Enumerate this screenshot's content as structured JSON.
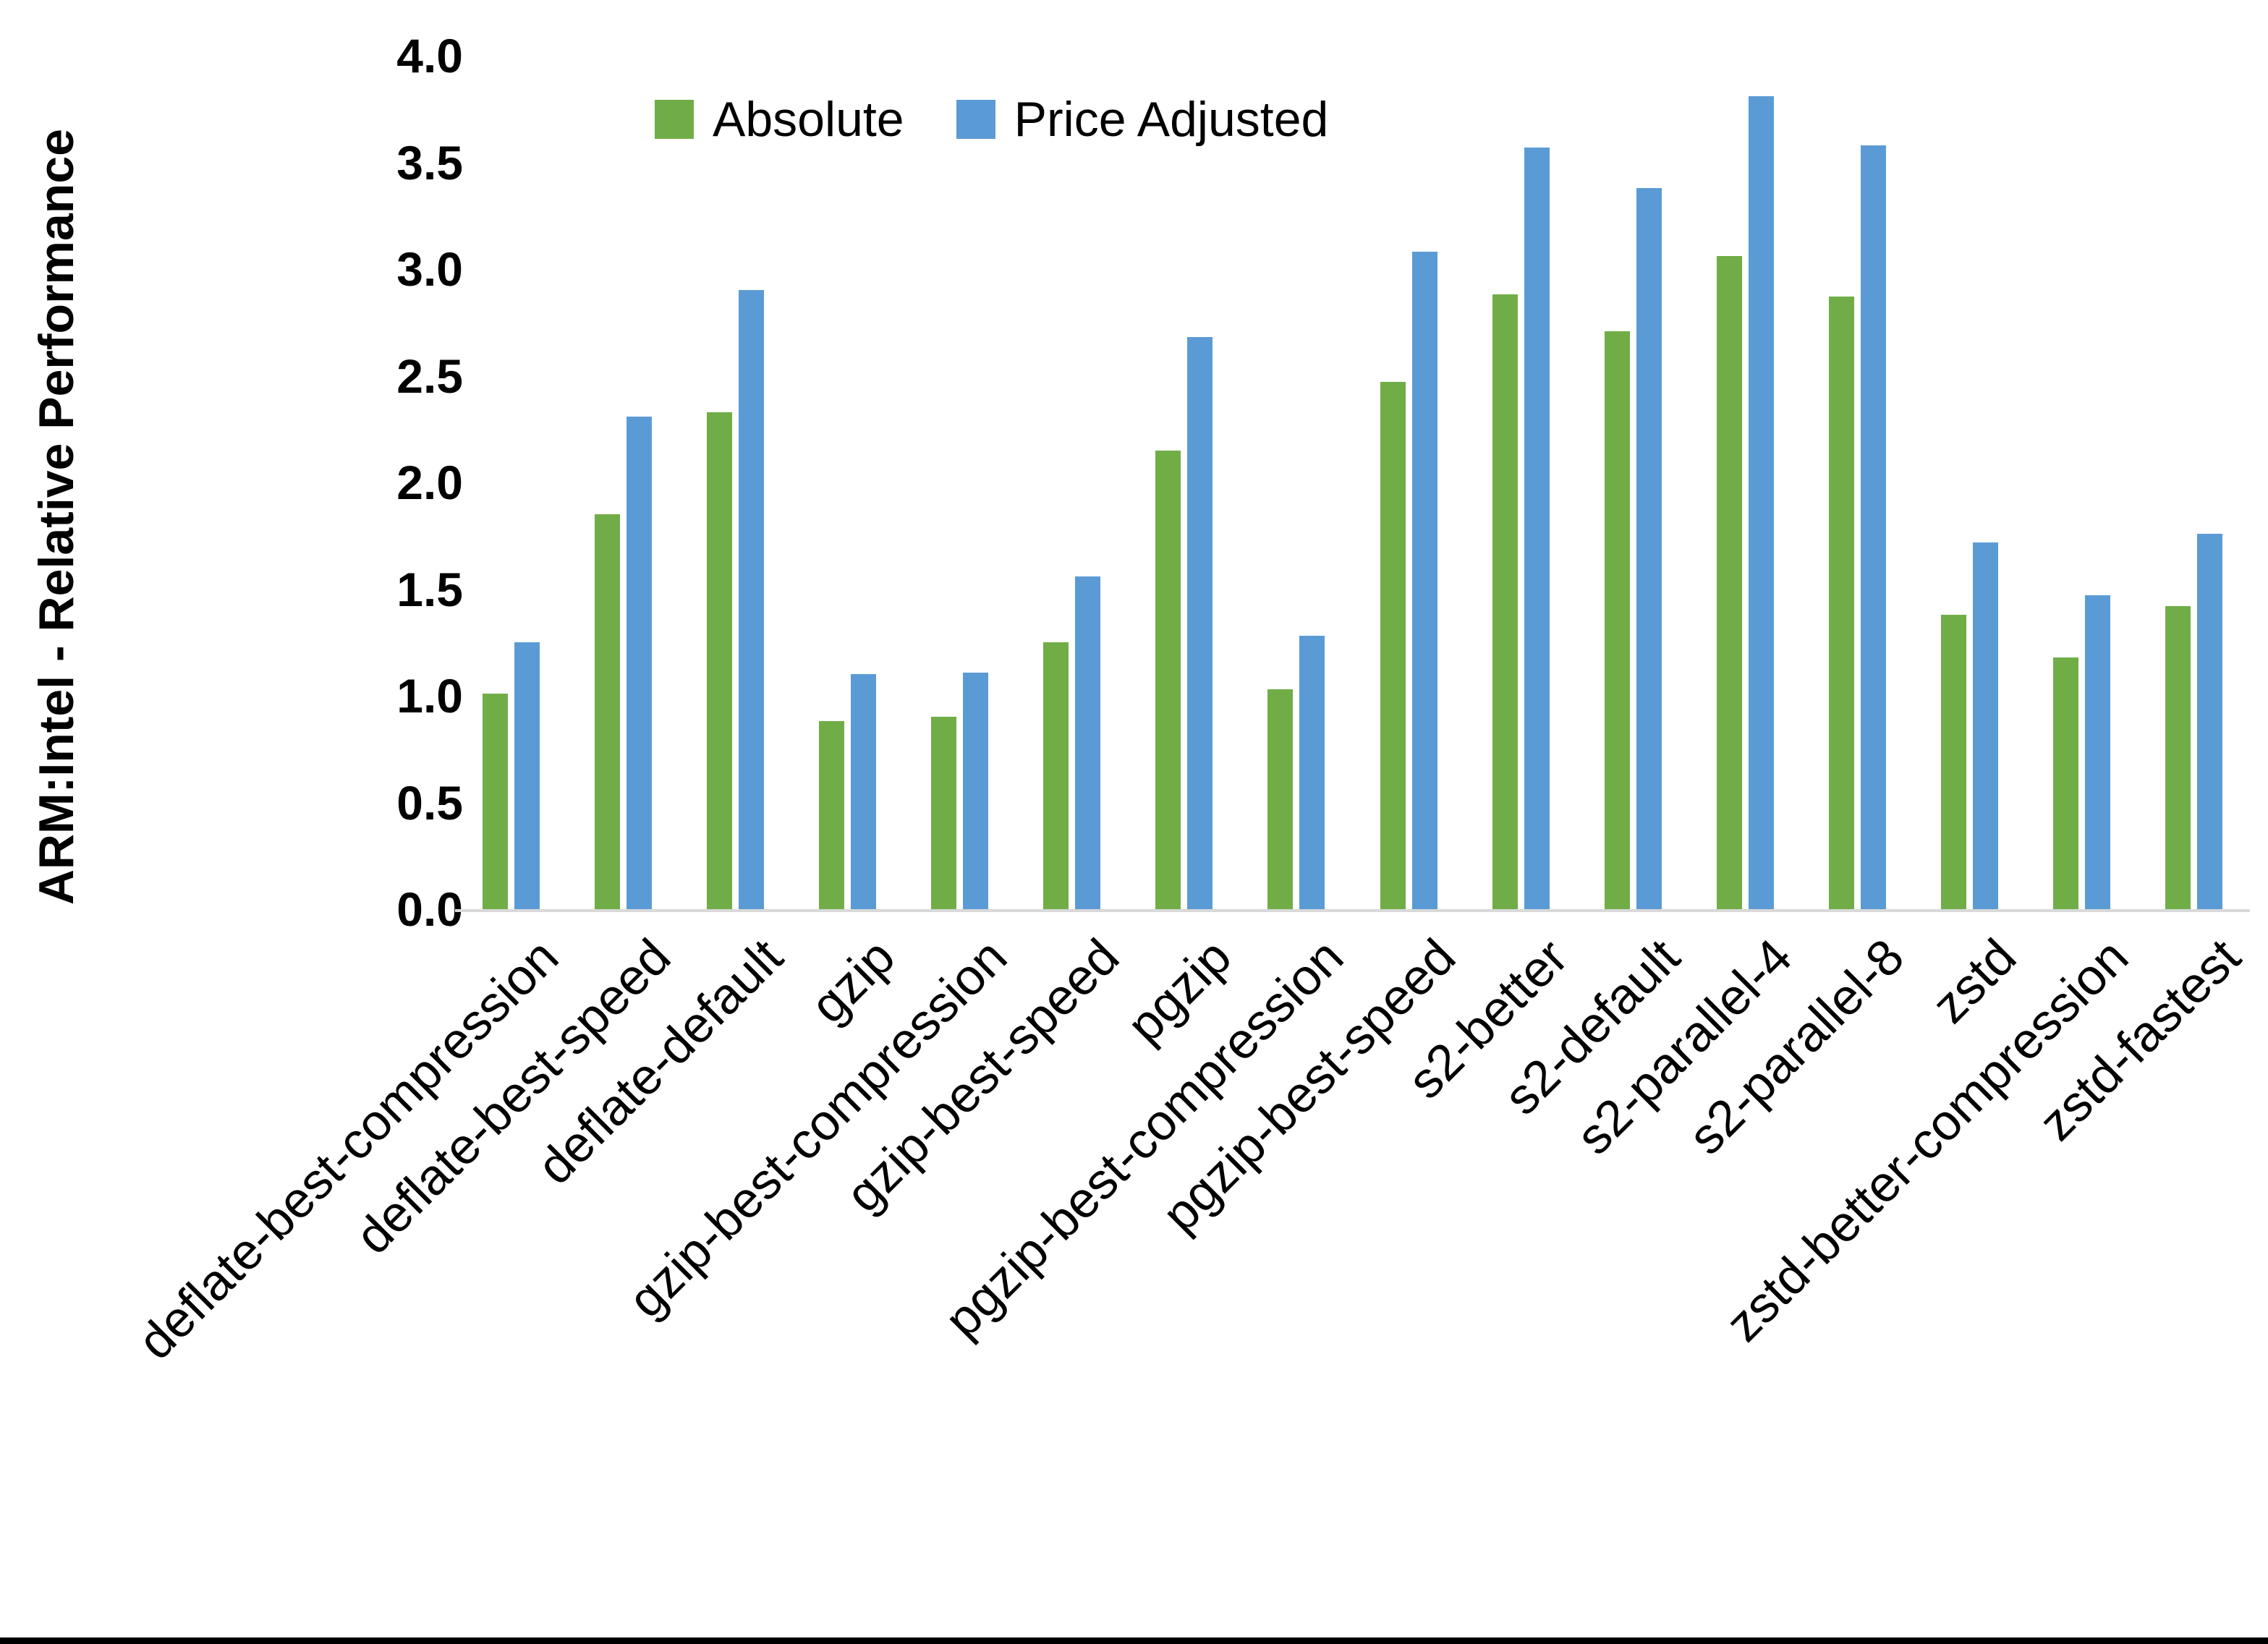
{
  "chart_data": {
    "type": "bar",
    "title": "",
    "ylabel": "ARM:Intel - Relative Performance",
    "xlabel": "",
    "categories": [
      "deflate-best-compression",
      "deflate-best-speed",
      "deflate-default",
      "gzip",
      "gzip-best-compression",
      "gzip-best-speed",
      "pgzip",
      "pgzip-best-compression",
      "pgzip-best-speed",
      "s2-better",
      "s2-default",
      "s2-parallel-4",
      "s2-parallel-8",
      "zstd",
      "zstd-better-compression",
      "zstd-fastest"
    ],
    "series": [
      {
        "name": "Absolute",
        "color": "#70AD47",
        "values": [
          1.01,
          1.85,
          2.33,
          0.88,
          0.9,
          1.25,
          2.15,
          1.03,
          2.47,
          2.88,
          2.71,
          3.06,
          2.87,
          1.38,
          1.18,
          1.42
        ]
      },
      {
        "name": "Price Adjusted",
        "color": "#5B9BD5",
        "values": [
          1.25,
          2.31,
          2.9,
          1.1,
          1.11,
          1.56,
          2.68,
          1.28,
          3.08,
          3.57,
          3.38,
          3.81,
          3.58,
          1.72,
          1.47,
          1.76
        ]
      }
    ],
    "ylim": [
      0.0,
      4.0
    ],
    "ytick_labels": [
      "0.0",
      "0.5",
      "1.0",
      "1.5",
      "2.0",
      "2.5",
      "3.0",
      "3.5",
      "4.0"
    ],
    "grid": false,
    "legend_position": "top-center",
    "axis_line_color": "#D9D9D9",
    "background_color": "#FFFFFF",
    "bottom_edge_color": "#000000",
    "text_color": "#000000"
  }
}
